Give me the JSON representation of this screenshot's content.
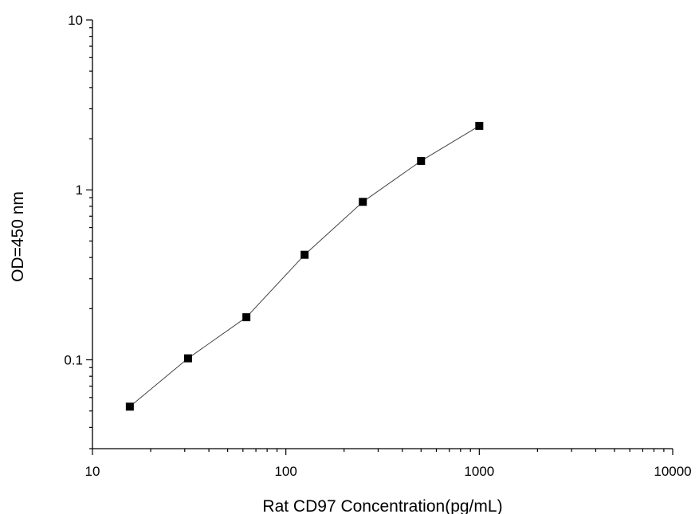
{
  "chart_data": {
    "type": "scatter",
    "title": "",
    "xlabel": "Rat CD97 Concentration(pg/mL)",
    "ylabel": "OD=450 nm",
    "xscale": "log",
    "yscale": "log",
    "xlim": [
      10,
      10000
    ],
    "ylim": [
      0.03,
      10
    ],
    "xticks": [
      10,
      100,
      1000,
      10000
    ],
    "xtick_labels": [
      "10",
      "100",
      "1000",
      "10000"
    ],
    "yticks": [
      0.1,
      1,
      10
    ],
    "ytick_labels": [
      "0.1",
      "1",
      "10"
    ],
    "grid": false,
    "legend": "none",
    "line_connected": true,
    "marker": "square",
    "series": [
      {
        "x": [
          15.6,
          31.2,
          62.5,
          125,
          250,
          500,
          1000
        ],
        "y": [
          0.053,
          0.102,
          0.178,
          0.415,
          0.85,
          1.48,
          2.38
        ]
      }
    ],
    "colors": {
      "marker": "#000000",
      "line": "#444444",
      "axis": "#000000"
    }
  }
}
